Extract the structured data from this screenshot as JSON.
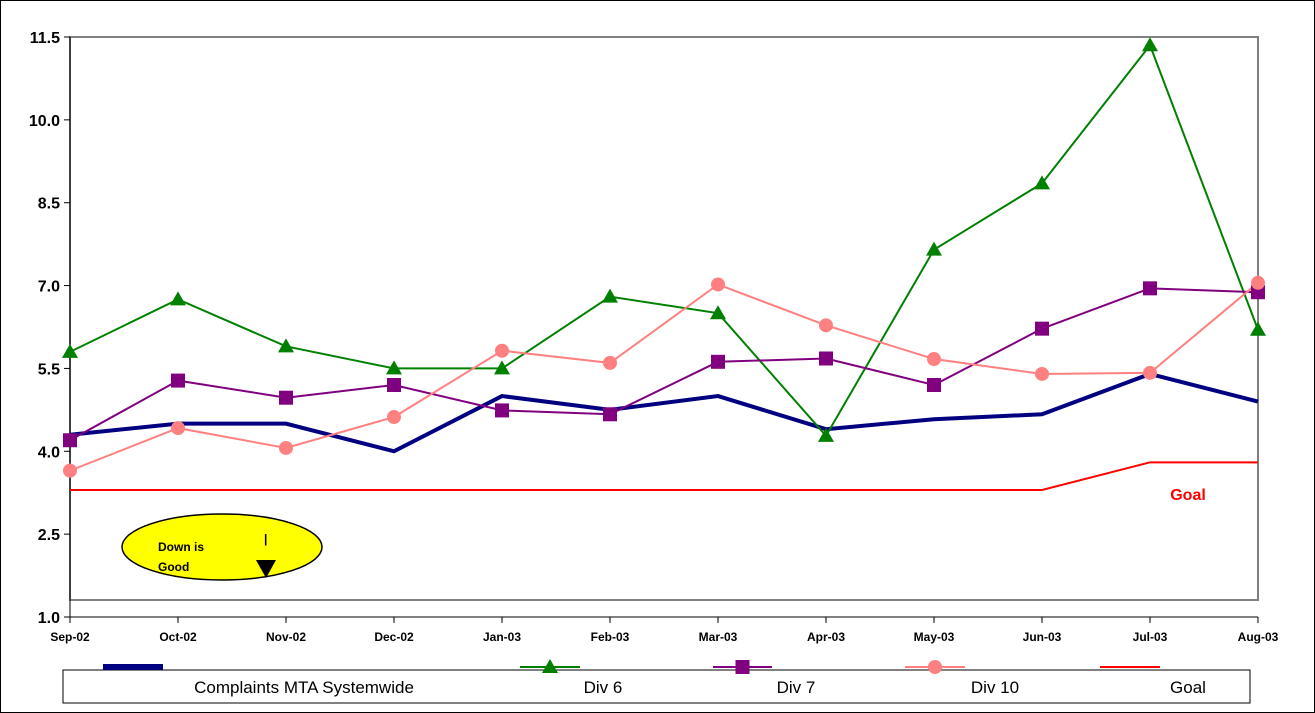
{
  "chart_data": {
    "type": "line",
    "categories": [
      "Sep-02",
      "Oct-02",
      "Nov-02",
      "Dec-02",
      "Jan-03",
      "Feb-03",
      "Mar-03",
      "Apr-03",
      "May-03",
      "Jun-03",
      "Jul-03",
      "Aug-03"
    ],
    "ylim": [
      1.0,
      11.5
    ],
    "yticks": [
      1.0,
      2.5,
      4.0,
      5.5,
      7.0,
      8.5,
      10.0,
      11.5
    ],
    "ytick_labels": [
      "1.0",
      "2.5",
      "4.0",
      "5.5",
      "7.0",
      "8.5",
      "10.0",
      "11.5"
    ],
    "grid": false,
    "legend_position": "bottom",
    "series": [
      {
        "name": "Complaints MTA Systemwide",
        "color": "#000080",
        "marker": "none",
        "values": [
          4.3,
          4.5,
          4.5,
          4.0,
          5.0,
          4.75,
          5.0,
          4.4,
          4.58,
          4.67,
          5.4,
          4.9
        ]
      },
      {
        "name": "Div 6",
        "color": "#008000",
        "marker": "triangle",
        "values": [
          5.8,
          6.75,
          5.9,
          5.5,
          5.5,
          6.8,
          6.5,
          4.28,
          7.65,
          8.85,
          11.35,
          6.2
        ]
      },
      {
        "name": "Div 7",
        "color": "#800080",
        "marker": "square",
        "values": [
          4.2,
          5.28,
          4.97,
          5.2,
          4.74,
          4.67,
          5.62,
          5.68,
          5.2,
          6.22,
          6.95,
          6.88
        ]
      },
      {
        "name": "Div 10",
        "color": "#ff8080",
        "marker": "circle",
        "values": [
          3.65,
          4.42,
          4.06,
          4.62,
          5.82,
          5.6,
          7.02,
          6.28,
          5.67,
          5.4,
          5.42,
          7.05
        ]
      },
      {
        "name": "Goal",
        "color": "#ff0000",
        "marker": "none",
        "values": [
          3.3,
          3.3,
          3.3,
          3.3,
          3.3,
          3.3,
          3.3,
          3.3,
          3.3,
          3.3,
          3.8,
          3.8
        ]
      }
    ],
    "annotations": {
      "goal_label": "Goal",
      "note": {
        "line1": "Down is",
        "line2": "Good",
        "tick": "|"
      }
    }
  }
}
